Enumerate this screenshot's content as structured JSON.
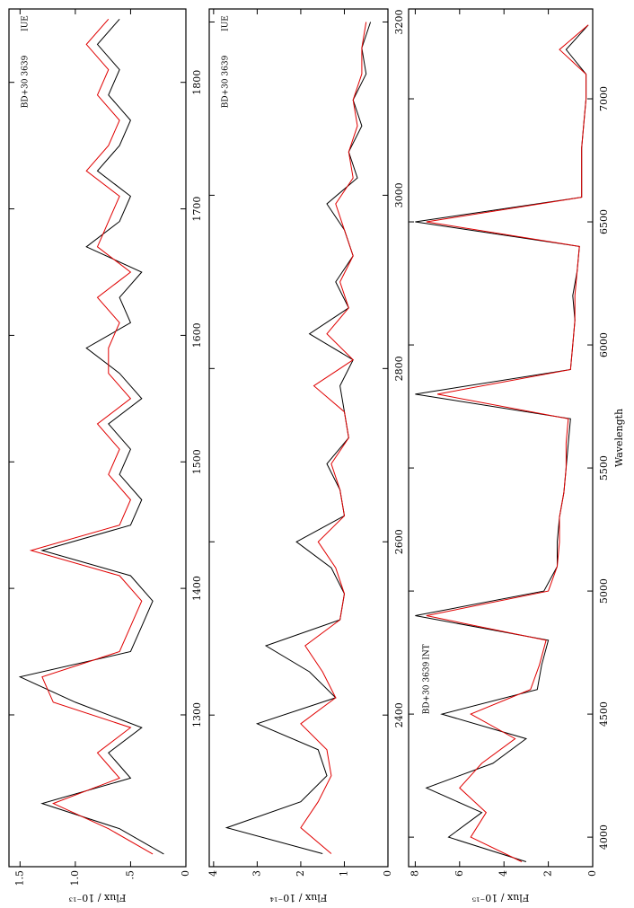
{
  "chart_data": [
    {
      "type": "line",
      "ylabel": "Flux / 10⁻¹³",
      "annotations": [
        "BD+30 3639",
        "IUE"
      ],
      "xlim": [
        1180,
        1858
      ],
      "ylim": [
        0,
        1.6
      ],
      "xticks": [
        1300,
        1400,
        1500,
        1600,
        1700,
        1800
      ],
      "yticks": [
        0,
        {
          "value": 0.5,
          "label": ".5"
        },
        {
          "value": 1.0,
          "label": "1.0"
        },
        1.5
      ],
      "x": [
        1190,
        1210,
        1230,
        1250,
        1270,
        1290,
        1310,
        1330,
        1350,
        1370,
        1390,
        1410,
        1430,
        1450,
        1470,
        1490,
        1510,
        1530,
        1550,
        1570,
        1590,
        1610,
        1630,
        1650,
        1670,
        1690,
        1710,
        1730,
        1750,
        1770,
        1790,
        1810,
        1830,
        1850
      ],
      "series": [
        {
          "color": "#000000",
          "values": [
            0.2,
            0.6,
            1.3,
            0.5,
            0.7,
            0.4,
            1.0,
            1.5,
            0.5,
            0.4,
            0.3,
            0.5,
            1.3,
            0.5,
            0.4,
            0.6,
            0.5,
            0.7,
            0.4,
            0.6,
            0.9,
            0.5,
            0.6,
            0.4,
            0.9,
            0.6,
            0.5,
            0.8,
            0.6,
            0.5,
            0.7,
            0.6,
            0.8,
            0.6
          ]
        },
        {
          "color": "#e00000",
          "values": [
            0.3,
            0.7,
            1.2,
            0.6,
            0.8,
            0.5,
            1.2,
            1.3,
            0.6,
            0.5,
            0.4,
            0.6,
            1.4,
            0.6,
            0.5,
            0.7,
            0.6,
            0.8,
            0.5,
            0.7,
            0.7,
            0.6,
            0.8,
            0.5,
            0.8,
            0.7,
            0.6,
            0.9,
            0.7,
            0.6,
            0.8,
            0.7,
            0.9,
            0.7
          ]
        }
      ]
    },
    {
      "type": "line",
      "ylabel": "Flux / 10⁻¹⁴",
      "annotations": [
        "BD+30 3639",
        "IUE"
      ],
      "xlim": [
        2225,
        3215
      ],
      "ylim": [
        0,
        4.1
      ],
      "xticks": [
        2400,
        2600,
        2800,
        3000,
        3200
      ],
      "yticks": [
        0,
        1,
        2,
        3,
        4
      ],
      "x": [
        2240,
        2270,
        2300,
        2330,
        2360,
        2390,
        2420,
        2450,
        2480,
        2510,
        2540,
        2570,
        2600,
        2630,
        2660,
        2690,
        2720,
        2750,
        2780,
        2810,
        2840,
        2870,
        2900,
        2930,
        2960,
        2990,
        3020,
        3050,
        3080,
        3110,
        3140,
        3170,
        3200
      ],
      "series": [
        {
          "color": "#000000",
          "values": [
            1.5,
            3.7,
            2.0,
            1.4,
            1.6,
            3.0,
            1.2,
            1.8,
            2.8,
            1.1,
            1.0,
            1.3,
            2.1,
            1.0,
            1.1,
            1.4,
            0.9,
            1.0,
            1.1,
            0.8,
            1.8,
            0.9,
            1.2,
            0.8,
            1.0,
            1.4,
            0.7,
            0.9,
            0.6,
            0.8,
            0.5,
            0.6,
            0.4
          ]
        },
        {
          "color": "#e00000",
          "values": [
            1.3,
            2.0,
            1.6,
            1.3,
            1.4,
            2.0,
            1.2,
            1.5,
            1.9,
            1.1,
            1.0,
            1.2,
            1.6,
            1.0,
            1.1,
            1.3,
            0.9,
            1.0,
            1.7,
            0.8,
            1.4,
            0.9,
            1.1,
            0.8,
            1.0,
            1.2,
            0.8,
            0.9,
            0.7,
            0.8,
            0.6,
            0.6,
            0.5
          ]
        }
      ]
    },
    {
      "type": "line",
      "ylabel": "Flux / 10⁻¹⁵",
      "xlabel": "Wavelength",
      "annotations": [
        "BD+30 3639",
        "INT"
      ],
      "xlim": [
        3880,
        7365
      ],
      "ylim": [
        0,
        8.3
      ],
      "xticks": [
        4000,
        4500,
        5000,
        5500,
        6000,
        6500,
        7000
      ],
      "yticks": [
        0,
        2,
        4,
        6,
        8
      ],
      "x": [
        3900,
        4000,
        4100,
        4200,
        4300,
        4400,
        4500,
        4600,
        4700,
        4800,
        4900,
        5000,
        5100,
        5200,
        5300,
        5400,
        5500,
        5600,
        5700,
        5800,
        5900,
        6000,
        6100,
        6200,
        6300,
        6400,
        6500,
        6600,
        6700,
        6800,
        6900,
        7000,
        7100,
        7200,
        7300
      ],
      "series": [
        {
          "color": "#000000",
          "values": [
            3.0,
            6.5,
            5.0,
            7.5,
            4.5,
            3.0,
            6.8,
            2.5,
            2.3,
            2.0,
            8.0,
            2.2,
            1.6,
            1.6,
            1.5,
            1.3,
            1.2,
            1.1,
            1.0,
            8.0,
            1.0,
            0.9,
            0.8,
            0.9,
            0.7,
            0.6,
            8.0,
            0.5,
            0.5,
            0.5,
            0.4,
            0.3,
            0.3,
            1.2,
            0.2
          ]
        },
        {
          "color": "#e00000",
          "values": [
            3.2,
            5.5,
            4.8,
            6.0,
            5.0,
            3.5,
            5.5,
            2.8,
            2.4,
            2.1,
            7.5,
            2.0,
            1.6,
            1.5,
            1.5,
            1.3,
            1.2,
            1.2,
            1.1,
            7.0,
            1.0,
            0.9,
            0.8,
            0.8,
            0.7,
            0.6,
            7.5,
            0.5,
            0.5,
            0.5,
            0.4,
            0.3,
            0.3,
            1.5,
            0.2
          ]
        }
      ]
    }
  ]
}
